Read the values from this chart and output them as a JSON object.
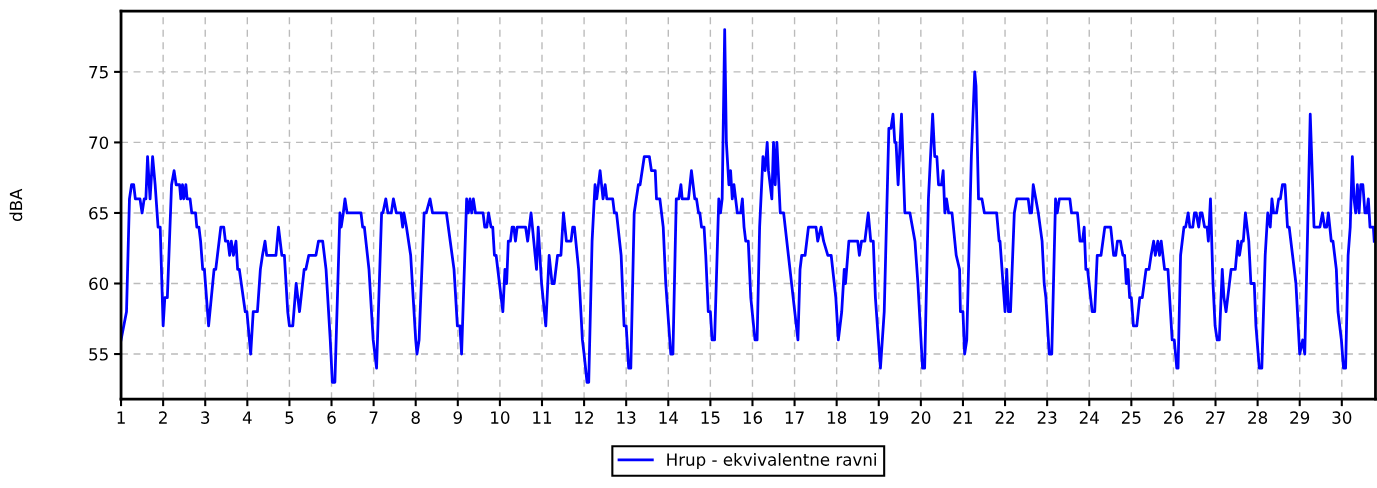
{
  "chart_data": {
    "type": "line",
    "ylabel": "dBA",
    "xlim": [
      1,
      30.8
    ],
    "ylim": [
      51.8,
      79.3
    ],
    "xticks": [
      1,
      2,
      3,
      4,
      5,
      6,
      7,
      8,
      9,
      10,
      11,
      12,
      13,
      14,
      15,
      16,
      17,
      18,
      19,
      20,
      21,
      22,
      23,
      24,
      25,
      26,
      27,
      28,
      29,
      30
    ],
    "yticks": [
      55,
      60,
      65,
      70,
      75
    ],
    "grid": true,
    "legend": "bottom",
    "line_style": "solid",
    "marker": "none",
    "series": [
      {
        "name": "Hrup - ekvivalentne ravni",
        "color": "#0000ff",
        "x": [
          1.0,
          1.13,
          1.2,
          1.25,
          1.3,
          1.34,
          1.45,
          1.5,
          1.55,
          1.59,
          1.63,
          1.69,
          1.75,
          1.81,
          1.88,
          1.93,
          2.0,
          2.04,
          2.1,
          2.2,
          2.26,
          2.31,
          2.39,
          2.42,
          2.46,
          2.49,
          2.54,
          2.57,
          2.64,
          2.68,
          2.77,
          2.8,
          2.85,
          2.89,
          2.94,
          2.98,
          3.08,
          3.21,
          3.25,
          3.37,
          3.44,
          3.48,
          3.54,
          3.58,
          3.62,
          3.67,
          3.73,
          3.77,
          3.81,
          3.95,
          3.99,
          4.08,
          4.14,
          4.24,
          4.31,
          4.36,
          4.42,
          4.46,
          4.68,
          4.74,
          4.82,
          4.88,
          4.96,
          5.0,
          5.08,
          5.16,
          5.24,
          5.35,
          5.39,
          5.46,
          5.63,
          5.69,
          5.79,
          5.87,
          5.97,
          6.02,
          6.08,
          6.2,
          6.23,
          6.28,
          6.32,
          6.37,
          6.7,
          6.74,
          6.78,
          6.89,
          6.99,
          7.07,
          7.19,
          7.22,
          7.29,
          7.34,
          7.42,
          7.47,
          7.54,
          7.65,
          7.69,
          7.72,
          7.78,
          7.88,
          8.0,
          8.03,
          8.08,
          8.2,
          8.25,
          8.34,
          8.4,
          8.73,
          8.91,
          8.99,
          9.05,
          9.09,
          9.21,
          9.25,
          9.29,
          9.33,
          9.37,
          9.42,
          9.6,
          9.64,
          9.69,
          9.73,
          9.79,
          9.83,
          9.87,
          9.91,
          10.07,
          10.12,
          10.16,
          10.2,
          10.25,
          10.29,
          10.33,
          10.37,
          10.41,
          10.61,
          10.66,
          10.74,
          10.87,
          10.91,
          10.99,
          11.09,
          11.17,
          11.24,
          11.29,
          11.37,
          11.45,
          11.51,
          11.58,
          11.69,
          11.73,
          11.77,
          11.87,
          11.96,
          12.0,
          12.07,
          12.11,
          12.19,
          12.26,
          12.3,
          12.38,
          12.45,
          12.5,
          12.54,
          12.68,
          12.72,
          12.77,
          12.88,
          12.95,
          13.0,
          13.06,
          13.11,
          13.19,
          13.29,
          13.33,
          13.43,
          13.55,
          13.6,
          13.69,
          13.72,
          13.8,
          13.88,
          13.94,
          14.06,
          14.11,
          14.19,
          14.25,
          14.3,
          14.33,
          14.48,
          14.55,
          14.63,
          14.67,
          14.72,
          14.75,
          14.79,
          14.85,
          14.89,
          14.95,
          15.0,
          15.04,
          15.1,
          15.2,
          15.24,
          15.28,
          15.34,
          15.38,
          15.44,
          15.48,
          15.52,
          15.56,
          15.64,
          15.72,
          15.76,
          15.8,
          15.84,
          15.9,
          15.96,
          16.06,
          16.11,
          16.17,
          16.25,
          16.3,
          16.35,
          16.38,
          16.46,
          16.5,
          16.54,
          16.58,
          16.66,
          16.74,
          17.08,
          17.13,
          17.17,
          17.25,
          17.33,
          17.51,
          17.55,
          17.63,
          17.69,
          17.79,
          17.87,
          17.98,
          18.04,
          18.12,
          18.18,
          18.21,
          18.29,
          18.5,
          18.54,
          18.59,
          18.67,
          18.75,
          18.81,
          18.87,
          18.92,
          19.04,
          19.13,
          19.24,
          19.29,
          19.34,
          19.38,
          19.41,
          19.46,
          19.54,
          19.62,
          19.74,
          19.86,
          19.93,
          20.04,
          20.09,
          20.18,
          20.28,
          20.33,
          20.38,
          20.42,
          20.49,
          20.53,
          20.57,
          20.61,
          20.66,
          20.74,
          20.84,
          20.92,
          20.94,
          21.0,
          21.04,
          21.09,
          21.2,
          21.28,
          21.31,
          21.37,
          21.45,
          21.51,
          21.8,
          21.86,
          21.88,
          22.0,
          22.04,
          22.08,
          22.13,
          22.22,
          22.28,
          22.55,
          22.59,
          22.63,
          22.67,
          22.73,
          22.79,
          22.88,
          22.93,
          22.97,
          23.05,
          23.11,
          23.2,
          23.24,
          23.29,
          23.54,
          23.58,
          23.72,
          23.78,
          23.84,
          23.88,
          23.92,
          23.96,
          24.07,
          24.13,
          24.19,
          24.28,
          24.37,
          24.51,
          24.58,
          24.63,
          24.67,
          24.74,
          24.8,
          24.84,
          24.88,
          24.92,
          24.96,
          25.0,
          25.05,
          25.13,
          25.2,
          25.26,
          25.35,
          25.42,
          25.47,
          25.53,
          25.57,
          25.63,
          25.67,
          25.71,
          25.79,
          25.87,
          25.97,
          26.02,
          26.08,
          26.11,
          26.17,
          26.25,
          26.29,
          26.35,
          26.39,
          26.46,
          26.5,
          26.54,
          26.6,
          26.64,
          26.68,
          26.74,
          26.8,
          26.83,
          26.88,
          26.94,
          26.99,
          27.04,
          27.09,
          27.16,
          27.2,
          27.25,
          27.37,
          27.47,
          27.53,
          27.57,
          27.62,
          27.66,
          27.71,
          27.79,
          27.84,
          27.92,
          27.96,
          28.04,
          28.1,
          28.18,
          28.24,
          28.3,
          28.34,
          28.38,
          28.45,
          28.5,
          28.54,
          28.59,
          28.65,
          28.71,
          28.75,
          28.91,
          29.0,
          29.07,
          29.12,
          29.19,
          29.25,
          29.34,
          29.48,
          29.54,
          29.59,
          29.64,
          29.68,
          29.75,
          29.79,
          29.87,
          29.91,
          29.99,
          30.04,
          30.09,
          30.15,
          30.2,
          30.25,
          30.29,
          30.33,
          30.37,
          30.41,
          30.45,
          30.5,
          30.55,
          30.59,
          30.63,
          30.67,
          30.75,
          30.77
        ],
        "values": [
          56,
          58,
          66,
          67,
          67,
          66,
          66,
          65,
          66,
          66,
          69,
          66,
          69,
          67,
          64,
          64,
          57,
          59,
          59,
          67,
          68,
          67,
          67,
          66,
          67,
          66,
          67,
          66,
          66,
          65,
          65,
          64,
          64,
          63,
          61,
          61,
          57,
          61,
          61,
          64,
          64,
          63,
          63,
          62,
          63,
          62,
          63,
          61,
          61,
          58,
          58,
          55,
          58,
          58,
          61,
          62,
          63,
          62,
          62,
          64,
          62,
          62,
          58,
          57,
          57,
          60,
          58,
          61,
          61,
          62,
          62,
          63,
          63,
          61,
          56,
          53,
          53,
          65,
          64,
          65,
          66,
          65,
          65,
          64,
          64,
          61,
          56,
          54,
          65,
          65,
          66,
          65,
          65,
          66,
          65,
          65,
          64,
          65,
          64,
          62,
          56,
          55,
          56,
          65,
          65,
          66,
          65,
          65,
          61,
          57,
          57,
          55,
          66,
          65,
          66,
          65,
          66,
          65,
          65,
          64,
          64,
          65,
          64,
          64,
          62,
          62,
          58,
          61,
          60,
          63,
          63,
          64,
          64,
          63,
          64,
          64,
          63,
          65,
          61,
          64,
          60,
          57,
          62,
          60,
          60,
          62,
          62,
          65,
          63,
          63,
          64,
          64,
          61,
          56,
          55,
          53,
          53,
          63,
          67,
          66,
          68,
          66,
          67,
          66,
          66,
          65,
          65,
          62,
          57,
          57,
          54,
          54,
          65,
          67,
          67,
          69,
          69,
          68,
          68,
          66,
          66,
          64,
          60,
          55,
          55,
          66,
          66,
          67,
          66,
          66,
          68,
          66,
          66,
          65,
          65,
          64,
          64,
          62,
          58,
          58,
          56,
          56,
          66,
          65,
          66,
          78,
          70,
          67,
          68,
          66,
          67,
          65,
          65,
          66,
          64,
          63,
          63,
          59,
          56,
          56,
          64,
          69,
          68,
          70,
          68,
          66,
          70,
          67,
          70,
          65,
          65,
          56,
          61,
          62,
          62,
          64,
          64,
          63,
          64,
          63,
          62,
          62,
          59,
          56,
          58,
          61,
          60,
          63,
          63,
          62,
          63,
          63,
          65,
          63,
          63,
          59,
          54,
          58,
          71,
          71,
          72,
          70,
          70,
          67,
          72,
          65,
          65,
          63,
          60,
          54,
          54,
          66,
          72,
          69,
          69,
          67,
          67,
          68,
          65,
          66,
          65,
          65,
          62,
          61,
          58,
          58,
          55,
          56,
          69,
          75,
          74,
          66,
          66,
          65,
          65,
          63,
          63,
          58,
          61,
          58,
          58,
          65,
          66,
          66,
          65,
          65,
          67,
          66,
          65,
          63,
          60,
          59,
          55,
          55,
          66,
          65,
          66,
          66,
          65,
          65,
          63,
          63,
          64,
          61,
          61,
          58,
          58,
          62,
          62,
          64,
          64,
          62,
          62,
          63,
          63,
          62,
          62,
          60,
          61,
          59,
          59,
          57,
          57,
          59,
          59,
          61,
          61,
          62,
          63,
          62,
          63,
          62,
          63,
          61,
          61,
          56,
          56,
          54,
          54,
          62,
          64,
          64,
          65,
          64,
          64,
          65,
          65,
          64,
          65,
          65,
          64,
          64,
          63,
          66,
          60,
          57,
          56,
          56,
          61,
          59,
          58,
          61,
          61,
          63,
          62,
          63,
          63,
          65,
          63,
          60,
          60,
          57,
          54,
          54,
          62,
          65,
          64,
          66,
          65,
          65,
          66,
          66,
          67,
          67,
          64,
          64,
          60,
          55,
          56,
          55,
          64,
          72,
          64,
          64,
          65,
          64,
          64,
          65,
          63,
          63,
          61,
          58,
          56,
          54,
          54,
          62,
          64,
          69,
          66,
          65,
          67,
          65,
          67,
          67,
          65,
          65,
          66,
          64,
          64,
          63
        ]
      }
    ]
  }
}
